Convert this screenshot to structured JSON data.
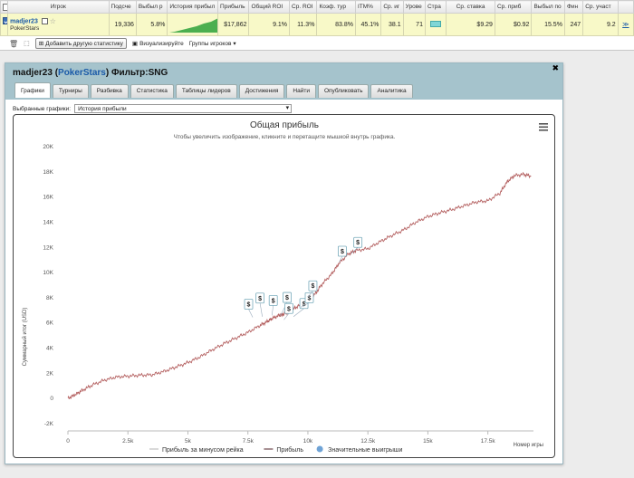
{
  "stats": {
    "headers": [
      "Игрок",
      "Подсче",
      "Выбыл р",
      "История прибыл",
      "Прибыль",
      "Общий ROI",
      "Ср. ROI",
      "Коэф. тур",
      "ITM%",
      "Ср. иг",
      "Урове",
      "Стра",
      "Ср. ставка",
      "Ср. приб",
      "Выбыл по",
      "Фин",
      "Ср. участ"
    ],
    "row": {
      "player": "madjer23",
      "room": "PokerStars",
      "count": "19,336",
      "early_exit": "5.8%",
      "profit": "$17,862",
      "total_roi": "9.1%",
      "avg_roi": "11.3%",
      "coef": "83.8%",
      "itm": "45.1%",
      "avg_players": "38.1",
      "level": "71",
      "avg_stake": "$9.29",
      "avg_profit": "$0.92",
      "bubble": "15.5%",
      "fin": "247",
      "avg_entrants": "9.2",
      "link": "≫"
    }
  },
  "toolbar": {
    "add_stat": "Добавить другую статистику",
    "visualize": "Визуализируйте",
    "groups": "Группы игроков"
  },
  "window": {
    "player": "madjer23",
    "room": "PokerStars",
    "filter": "Фильтр:SNG",
    "close": "✖",
    "tabs": [
      "Графики",
      "Турниры",
      "Разбивка",
      "Статистика",
      "Таблицы лидеров",
      "Достижения",
      "Найти",
      "Опубликовать",
      "Аналитика"
    ],
    "select_label": "Выбранные графики:",
    "select_value": "История прибыли"
  },
  "chart_data": {
    "type": "line",
    "title": "Общая прибыль",
    "subtitle": "Чтобы увеличить изображение, кликните и перетащите мышкой внутрь графика.",
    "xlabel": "Номер игры",
    "ylabel": "Суммарный итог (USD)",
    "xlim": [
      0,
      19400
    ],
    "ylim": [
      -2000,
      20000
    ],
    "x_ticks": [
      "0",
      "2.5k",
      "5k",
      "7.5k",
      "10k",
      "12.5k",
      "15k",
      "17.5k"
    ],
    "y_ticks": [
      "-2K",
      "0",
      "2K",
      "4K",
      "6K",
      "8K",
      "10K",
      "12K",
      "14K",
      "16K",
      "18K",
      "20K"
    ],
    "series": [
      {
        "name": "Прибыль",
        "color": "#b46060",
        "points": [
          [
            0,
            0
          ],
          [
            300,
            300
          ],
          [
            600,
            650
          ],
          [
            1000,
            1050
          ],
          [
            1500,
            1450
          ],
          [
            2000,
            1700
          ],
          [
            2500,
            1780
          ],
          [
            3000,
            1850
          ],
          [
            3500,
            1880
          ],
          [
            4000,
            2150
          ],
          [
            4500,
            2500
          ],
          [
            5000,
            2850
          ],
          [
            5500,
            3300
          ],
          [
            6000,
            3850
          ],
          [
            6500,
            4350
          ],
          [
            7000,
            4800
          ],
          [
            7500,
            5250
          ],
          [
            8000,
            5800
          ],
          [
            8300,
            6100
          ],
          [
            8500,
            6350
          ],
          [
            8800,
            6600
          ],
          [
            9000,
            6700
          ],
          [
            9300,
            7000
          ],
          [
            9600,
            7350
          ],
          [
            10000,
            7700
          ],
          [
            10300,
            8300
          ],
          [
            10600,
            9100
          ],
          [
            11000,
            9900
          ],
          [
            11300,
            10750
          ],
          [
            11700,
            11500
          ],
          [
            12000,
            11750
          ],
          [
            12500,
            11900
          ],
          [
            13000,
            12450
          ],
          [
            13500,
            12950
          ],
          [
            14000,
            13400
          ],
          [
            14500,
            14000
          ],
          [
            15000,
            14450
          ],
          [
            15500,
            14750
          ],
          [
            16000,
            15000
          ],
          [
            16500,
            15300
          ],
          [
            17000,
            15600
          ],
          [
            17500,
            15700
          ],
          [
            18000,
            16300
          ],
          [
            18300,
            17200
          ],
          [
            18600,
            17700
          ],
          [
            19000,
            17800
          ],
          [
            19300,
            17650
          ]
        ]
      }
    ],
    "legend": [
      {
        "label": "Прибыль за минусом рейка",
        "color": "#cccccc",
        "type": "line"
      },
      {
        "label": "Прибыль",
        "color": "#8a6c70",
        "type": "line"
      },
      {
        "label": "Значительные выигрыши",
        "color": "#6fa3d6",
        "type": "dot"
      }
    ],
    "markers": {
      "label": "$",
      "points": [
        [
          7700,
          6450
        ],
        [
          8100,
          6500
        ],
        [
          8500,
          6600
        ],
        [
          8850,
          6550
        ],
        [
          9000,
          6250
        ],
        [
          9400,
          6500
        ],
        [
          9700,
          7250
        ],
        [
          10000,
          8050
        ],
        [
          11300,
          10800
        ],
        [
          11800,
          11500
        ]
      ]
    },
    "grid": false,
    "legend_position": "bottom"
  },
  "colors": {
    "header_bg": "#a5c3cc",
    "row_bg": "#f8f9c8",
    "link": "#1a5aa8"
  }
}
